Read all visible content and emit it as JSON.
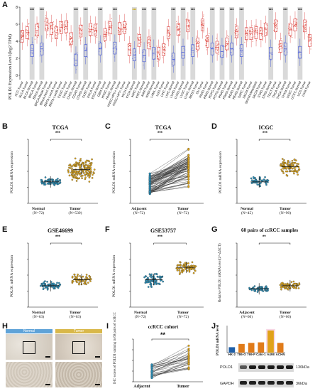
{
  "panels": {
    "A": {
      "letter": "A",
      "ylabel": "POLD1 Expression Level (log2 TPM)",
      "chart_data": {
        "type": "box",
        "yticks": [
          0,
          2,
          4,
          6,
          8
        ],
        "ylim": [
          -0.5,
          8
        ],
        "categories": [
          "ACC.Tumor",
          "BLCA.Tumor",
          "BLCA.Normal",
          "BRCA.Tumor",
          "BRCA.Normal",
          "BRCA-Basal.Tumor",
          "BRCA-Her2.Tumor",
          "BRCA-LumA.Tumor",
          "BRCA-LumB.Tumor",
          "CESC.Tumor",
          "CHOL.Tumor",
          "CHOL.Normal",
          "COAD.Tumor",
          "COAD.Normal",
          "DLBC.Tumor",
          "ESCA.Tumor",
          "ESCA.Normal",
          "GBM.Tumor",
          "HNSC.Tumor",
          "HNSC.Normal",
          "HNSC-HPV+.Tumor",
          "HNSC-HPV-.Tumor",
          "KICH.Tumor",
          "KICH.Normal",
          "KIRC.Tumor",
          "KIRC.Normal",
          "KIRP.Tumor",
          "KIRP.Normal",
          "LAML.Tumor",
          "LGG.Tumor",
          "LIHC.Tumor",
          "LIHC.Normal",
          "LUAD.Tumor",
          "LUAD.Normal",
          "LUSC.Tumor",
          "LUSC.Normal",
          "MESO.Tumor",
          "OV.Tumor",
          "PAAD.Tumor",
          "PAAD.Normal",
          "PCPG.Tumor",
          "PCPG.Normal",
          "PRAD.Tumor",
          "PRAD.Normal",
          "READ.Tumor",
          "READ.Normal",
          "SARC.Tumor",
          "SKCM.Tumor",
          "SKCM.Metastasis",
          "SKCM.Tumor",
          "STAD.Tumor",
          "STAD.Normal",
          "TGCT.Tumor",
          "THCA.Tumor",
          "THCA.Normal",
          "THYM.Tumor",
          "UCEC.Tumor",
          "UCEC.Normal",
          "UCS.Tumor",
          "UVM.Tumor"
        ],
        "medians": [
          4.6,
          5.0,
          2.9,
          5.3,
          3.1,
          5.9,
          5.5,
          5.0,
          5.6,
          5.7,
          4.3,
          1.8,
          5.2,
          2.9,
          5.4,
          5.3,
          3.1,
          4.8,
          5.6,
          3.2,
          5.5,
          5.6,
          3.0,
          2.4,
          4.1,
          2.3,
          3.8,
          2.6,
          2.6,
          3.0,
          5.0,
          1.9,
          5.4,
          2.7,
          5.8,
          2.9,
          3.7,
          5.9,
          4.0,
          3.1,
          3.3,
          2.8,
          3.7,
          3.1,
          5.1,
          2.9,
          4.9,
          4.9,
          5.0,
          4.9,
          5.4,
          2.6,
          5.8,
          3.4,
          3.1,
          5.4,
          5.9,
          2.7,
          5.8,
          4.1
        ],
        "sig_labels": [
          "***",
          "***",
          "***",
          "***",
          "***",
          "***",
          "***",
          "***",
          "***",
          "***",
          "***",
          "***",
          "***",
          "***",
          "***",
          "***",
          "***",
          "***",
          "***",
          "***",
          "***",
          "***",
          "***"
        ]
      }
    },
    "B": {
      "letter": "B",
      "title": "TCGA",
      "ylabel": "POLD1 mRNA expression",
      "sig": "***",
      "chart_data": {
        "type": "scatter",
        "groups": [
          {
            "name": "Normal",
            "n": "(N=72)",
            "center": 0.35,
            "spread": 0.15,
            "color": "#2a8fb8"
          },
          {
            "name": "Tumor",
            "n": "(N=539)",
            "center": 0.55,
            "spread": 0.45,
            "color": "#d9a21b"
          }
        ]
      }
    },
    "C": {
      "letter": "C",
      "title": "TCGA",
      "ylabel": "POLD1 mRNA expression",
      "sig": "***",
      "chart_data": {
        "type": "paired",
        "groups": [
          {
            "name": "Adjacent",
            "n": "(N=72)",
            "color": "#2a8fb8"
          },
          {
            "name": "Tumor",
            "n": "(N=72)",
            "color": "#d9a21b"
          }
        ]
      }
    },
    "D": {
      "letter": "D",
      "title": "ICGC",
      "ylabel": "POLD1 mRNA expression",
      "sig": "***",
      "chart_data": {
        "type": "scatter",
        "groups": [
          {
            "name": "Normal",
            "n": "(N=45)",
            "center": 0.35,
            "spread": 0.18,
            "color": "#2a8fb8"
          },
          {
            "name": "Tumor",
            "n": "(N=90)",
            "center": 0.6,
            "spread": 0.35,
            "color": "#d9a21b"
          }
        ]
      }
    },
    "E": {
      "letter": "E",
      "title": "GSE46699",
      "ylabel": "POLD1 mRNA expression",
      "sig": "***",
      "chart_data": {
        "type": "scatter",
        "groups": [
          {
            "name": "Normal",
            "n": "(N=63)",
            "center": 0.35,
            "spread": 0.18,
            "color": "#2a8fb8"
          },
          {
            "name": "Tumor",
            "n": "(N=63)",
            "center": 0.45,
            "spread": 0.25,
            "color": "#d9a21b"
          }
        ]
      }
    },
    "F": {
      "letter": "F",
      "title": "GSE53757",
      "ylabel": "POLD1 mRNA expression",
      "sig": "***",
      "chart_data": {
        "type": "scatter",
        "groups": [
          {
            "name": "Normal",
            "n": "(N=72)",
            "center": 0.45,
            "spread": 0.3,
            "color": "#2a8fb8"
          },
          {
            "name": "Tumor",
            "n": "(N=72)",
            "center": 0.65,
            "spread": 0.25,
            "color": "#d9a21b"
          }
        ]
      }
    },
    "G": {
      "letter": "G",
      "title": "60 pairs of ccRCC samples",
      "ylabel": "Relative POLD1 mRNA level(2^-ΔΔCT)",
      "sig": "**",
      "chart_data": {
        "type": "scatter",
        "groups": [
          {
            "name": "Adjacent",
            "n": "(N=60)",
            "center": 0.3,
            "spread": 0.12,
            "color": "#2a8fb8"
          },
          {
            "name": "Tumor",
            "n": "(N=60)",
            "center": 0.35,
            "spread": 0.2,
            "color": "#d9a21b"
          }
        ]
      }
    },
    "H": {
      "letter": "H",
      "labels": [
        "Normal",
        "Tumor"
      ]
    },
    "I": {
      "letter": "I",
      "title": "ccRCC cohort",
      "ylabel": "IHC scores of POLD1 staining in 60 pairs of ccRCC",
      "sig": "**",
      "chart_data": {
        "type": "paired",
        "groups": [
          {
            "name": "Adjacent",
            "color": "#2a8fb8"
          },
          {
            "name": "Tumor",
            "color": "#d9a21b"
          }
        ]
      }
    },
    "J": {
      "letter": "J",
      "ylabel": "POLD1 mRNA level",
      "chart_data": {
        "type": "bar",
        "categories": [
          "HK-2",
          "786-O",
          "769-P",
          "Caki-1",
          "A498",
          "ACHN"
        ],
        "values": [
          1.0,
          1.6,
          1.8,
          1.9,
          4.1,
          1.8
        ],
        "colors": [
          "#1f5fa8",
          "#e07b1a",
          "#e07b1a",
          "#e07b1a",
          "#e0a21a",
          "#e07b1a"
        ]
      },
      "blots": [
        {
          "name": "POLD1",
          "size": "130kDa"
        },
        {
          "name": "GAPDH",
          "size": "36kDa"
        }
      ]
    }
  }
}
